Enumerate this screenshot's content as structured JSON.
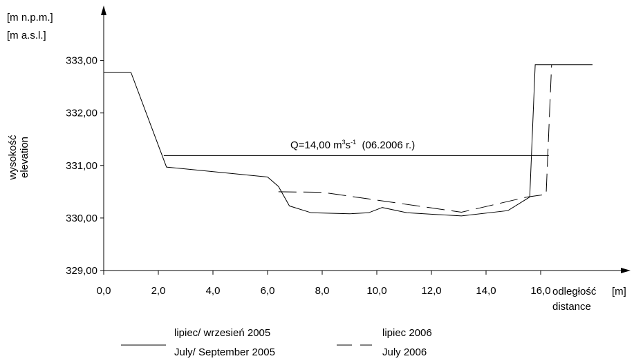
{
  "chart_data": {
    "type": "line",
    "y_unit_labels": [
      "[m n.p.m.]",
      "[m a.s.l.]"
    ],
    "y_axis_title": [
      "wysokość",
      "elevation"
    ],
    "x_axis_title": [
      "odległość",
      "distance"
    ],
    "x_unit_label": "[m]",
    "xlim": [
      0,
      18.3
    ],
    "ylim": [
      329.0,
      333.5
    ],
    "x_ticks": [
      0,
      2,
      4,
      6,
      8,
      10,
      12,
      14,
      16
    ],
    "x_tick_labels": [
      "0,0",
      "2,0",
      "4,0",
      "6,0",
      "8,0",
      "10,0",
      "12,0",
      "14,0",
      "16,0"
    ],
    "y_ticks": [
      329,
      330,
      331,
      332,
      333
    ],
    "y_tick_labels": [
      "329,00",
      "330,00",
      "331,00",
      "332,00",
      "333,00"
    ],
    "grid": false,
    "legend_position": "bottom-left",
    "series": [
      {
        "name": "lipiec/ wrzesień 2005 / July/ September 2005",
        "legend_lines": [
          "lipiec/ wrzesień 2005",
          "July/ September 2005"
        ],
        "style": "solid",
        "x": [
          0.0,
          1.0,
          2.3,
          6.0,
          6.4,
          6.8,
          7.6,
          9.0,
          9.7,
          10.2,
          11.1,
          13.1,
          14.8,
          15.6,
          15.8,
          17.9
        ],
        "y": [
          332.77,
          332.77,
          330.97,
          330.78,
          330.6,
          330.23,
          330.1,
          330.08,
          330.1,
          330.2,
          330.1,
          330.04,
          330.14,
          330.4,
          332.92,
          332.92
        ]
      },
      {
        "name": "lipiec 2006 / July 2006",
        "legend_lines": [
          "lipiec 2006",
          "July 2006"
        ],
        "style": "dashed",
        "x": [
          6.4,
          8.0,
          13.1,
          15.5,
          16.2,
          16.4
        ],
        "y": [
          330.5,
          330.49,
          330.11,
          330.4,
          330.45,
          332.92
        ]
      }
    ],
    "annotations": [
      {
        "type": "water_level",
        "label": "Q=14,00 m³s⁻¹ (06.2006 r.)",
        "label_parts": {
          "prefix": "Q=14,00 m",
          "sup1": "3",
          "mid": "s",
          "sup2": "-1",
          "suffix": "  (06.2006 r.)"
        },
        "y": 331.19,
        "x_start": 2.2,
        "x_end": 16.3
      }
    ]
  }
}
